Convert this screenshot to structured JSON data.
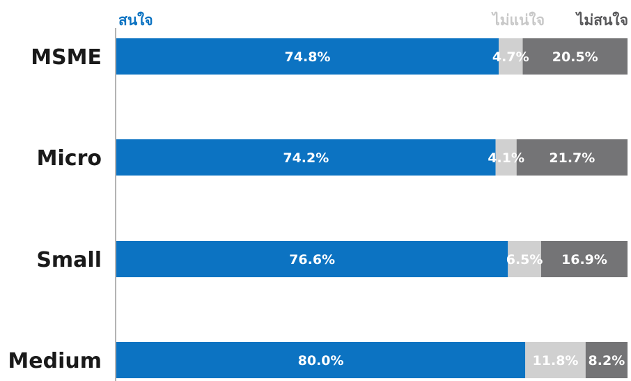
{
  "chart_data": {
    "type": "bar",
    "orientation": "horizontal",
    "stacked": true,
    "categories": [
      "MSME",
      "Micro",
      "Small",
      "Medium"
    ],
    "series": [
      {
        "name": "สนใจ",
        "color": "#0c73c2",
        "legend_color": "#0c73c2",
        "values": [
          74.8,
          74.2,
          76.6,
          80.0
        ],
        "labels": [
          "74.8%",
          "74.2%",
          "76.6%",
          "80.0%"
        ]
      },
      {
        "name": "ไม่แน่ใจ",
        "color": "#d0d0d0",
        "legend_color": "#c8c8c8",
        "values": [
          4.7,
          4.1,
          6.5,
          11.8
        ],
        "labels": [
          "4.7%",
          "4.1%",
          "6.5%",
          "11.8%"
        ]
      },
      {
        "name": "ไม่สนใจ",
        "color": "#747476",
        "legend_color": "#58585a",
        "values": [
          20.5,
          21.7,
          16.9,
          8.2
        ],
        "labels": [
          "20.5%",
          "21.7%",
          "16.9%",
          "8.2%"
        ]
      }
    ],
    "xlim": [
      0,
      100
    ],
    "grid": false,
    "legend": "top"
  }
}
